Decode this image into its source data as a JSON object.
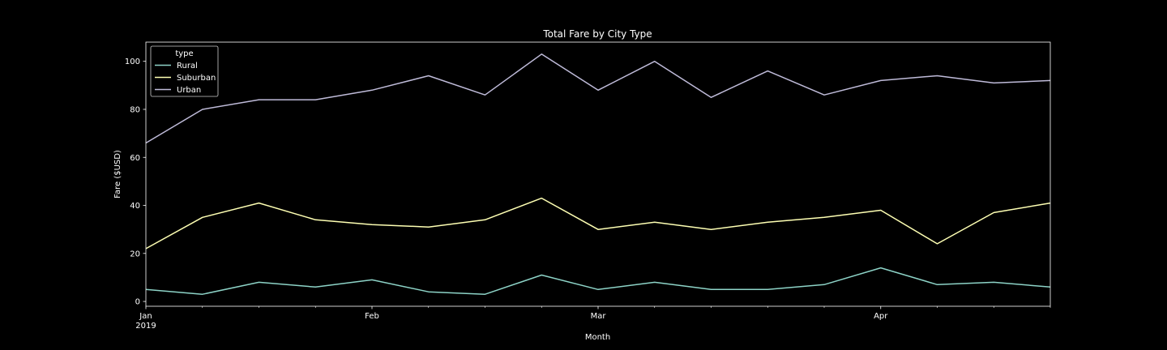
{
  "chart_data": {
    "type": "line",
    "title": "Total Fare by City Type",
    "xlabel": "Month",
    "ylabel": "Fare ($USD)",
    "x": [
      "2019-01-06",
      "2019-01-13",
      "2019-01-20",
      "2019-01-27",
      "2019-02-03",
      "2019-02-10",
      "2019-02-17",
      "2019-02-24",
      "2019-03-03",
      "2019-03-10",
      "2019-03-17",
      "2019-03-24",
      "2019-03-31",
      "2019-04-07",
      "2019-04-14",
      "2019-04-21",
      "2019-04-28"
    ],
    "x_ticks": [
      {
        "date": "2019-01-06",
        "label": "Jan",
        "sublabel": "2019"
      },
      {
        "date": "2019-02-03",
        "label": "Feb",
        "sublabel": ""
      },
      {
        "date": "2019-03-03",
        "label": "Mar",
        "sublabel": ""
      },
      {
        "date": "2019-04-07",
        "label": "Apr",
        "sublabel": ""
      }
    ],
    "ylim": [
      -2,
      108
    ],
    "y_ticks": [
      0,
      20,
      40,
      60,
      80,
      100
    ],
    "grid": false,
    "legend": {
      "title": "type",
      "placement": "top-left"
    },
    "series": [
      {
        "name": "Rural",
        "color": "#8dd3c7",
        "values": [
          5,
          3,
          8,
          6,
          9,
          4,
          3,
          11,
          5,
          8,
          5,
          5,
          7,
          14,
          7,
          8,
          6
        ]
      },
      {
        "name": "Suburban",
        "color": "#feffb3",
        "values": [
          22,
          35,
          41,
          34,
          32,
          31,
          34,
          43,
          30,
          33,
          30,
          33,
          35,
          38,
          24,
          37,
          41
        ]
      },
      {
        "name": "Urban",
        "color": "#bfbbd9",
        "values": [
          66,
          80,
          84,
          84,
          88,
          94,
          86,
          103,
          88,
          100,
          85,
          96,
          86,
          92,
          94,
          91,
          92
        ]
      }
    ]
  },
  "colors": {
    "background": "#000000",
    "foreground": "#ffffff"
  }
}
